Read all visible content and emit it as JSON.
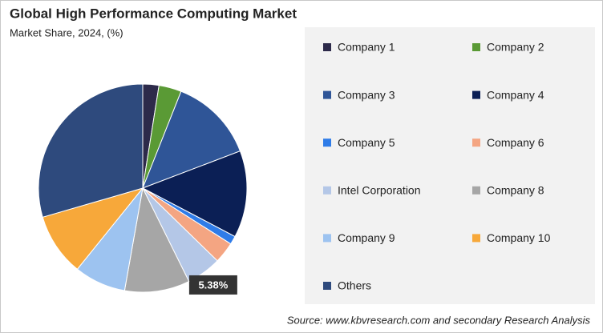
{
  "chart_data": {
    "type": "pie",
    "title": "Global High Performance Computing Market",
    "subtitle": "Market Share, 2024, (%)",
    "source": "Source: www.kbvresearch.com and secondary Research Analysis",
    "categories": [
      "Company 1",
      "Company 2",
      "Company 3",
      "Company 4",
      "Company 5",
      "Company 6",
      "Intel Corporation",
      "Company 8",
      "Company 9",
      "Company 10",
      "Others"
    ],
    "values": [
      2.5,
      3.5,
      13.2,
      13.5,
      1.3,
      3.3,
      5.38,
      10.1,
      8,
      9.7,
      29.5
    ],
    "value_labels": [
      null,
      null,
      null,
      null,
      null,
      null,
      "5.38%",
      null,
      null,
      null,
      null
    ],
    "colors": [
      "#2d2a4a",
      "#5a9a35",
      "#2f5597",
      "#0b1f55",
      "#2f7ce8",
      "#f4a582",
      "#b4c7e7",
      "#a6a6a6",
      "#9dc3f0",
      "#f7a83a",
      "#2e4a7d"
    ],
    "legend": "right"
  }
}
